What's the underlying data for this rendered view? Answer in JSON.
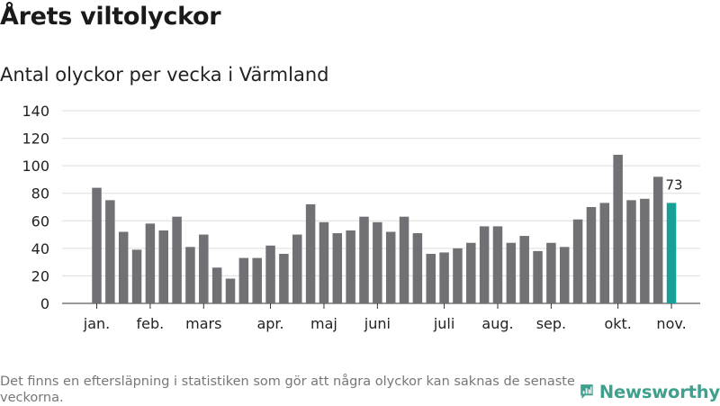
{
  "header": {
    "title": "Årets viltolyckor",
    "subtitle": "Antal olyckor per vecka i Värmland"
  },
  "footer": {
    "note": "Det finns en eftersläpning i statistiken som gör att några olyckor kan saknas de senaste veckorna.",
    "brand": "Newsworthy"
  },
  "colors": {
    "bar": "#717075",
    "highlight": "#17a097",
    "grid": "#dddddd",
    "brand": "#3fa08e"
  },
  "chart_data": {
    "type": "bar",
    "title": "Årets viltolyckor",
    "subtitle": "Antal olyckor per vecka i Värmland",
    "xlabel": "",
    "ylabel": "",
    "ylim": [
      0,
      140
    ],
    "yticks": [
      0,
      20,
      40,
      60,
      80,
      100,
      120,
      140
    ],
    "grid": true,
    "values": [
      84,
      75,
      52,
      39,
      58,
      53,
      63,
      41,
      50,
      26,
      18,
      33,
      33,
      42,
      36,
      50,
      72,
      59,
      51,
      53,
      63,
      59,
      52,
      63,
      51,
      36,
      37,
      40,
      44,
      56,
      56,
      44,
      49,
      38,
      44,
      41,
      61,
      70,
      73,
      108,
      75,
      76,
      92,
      73
    ],
    "highlight_index": 43,
    "data_labels": [
      {
        "index": 43,
        "text": "73"
      }
    ],
    "month_labels": [
      {
        "label": "jan.",
        "week_index": 0
      },
      {
        "label": "feb.",
        "week_index": 4
      },
      {
        "label": "mars",
        "week_index": 8
      },
      {
        "label": "apr.",
        "week_index": 13
      },
      {
        "label": "maj",
        "week_index": 17
      },
      {
        "label": "juni",
        "week_index": 21
      },
      {
        "label": "juli",
        "week_index": 26
      },
      {
        "label": "aug.",
        "week_index": 30
      },
      {
        "label": "sep.",
        "week_index": 34
      },
      {
        "label": "okt.",
        "week_index": 39
      },
      {
        "label": "nov.",
        "week_index": 43
      }
    ]
  }
}
